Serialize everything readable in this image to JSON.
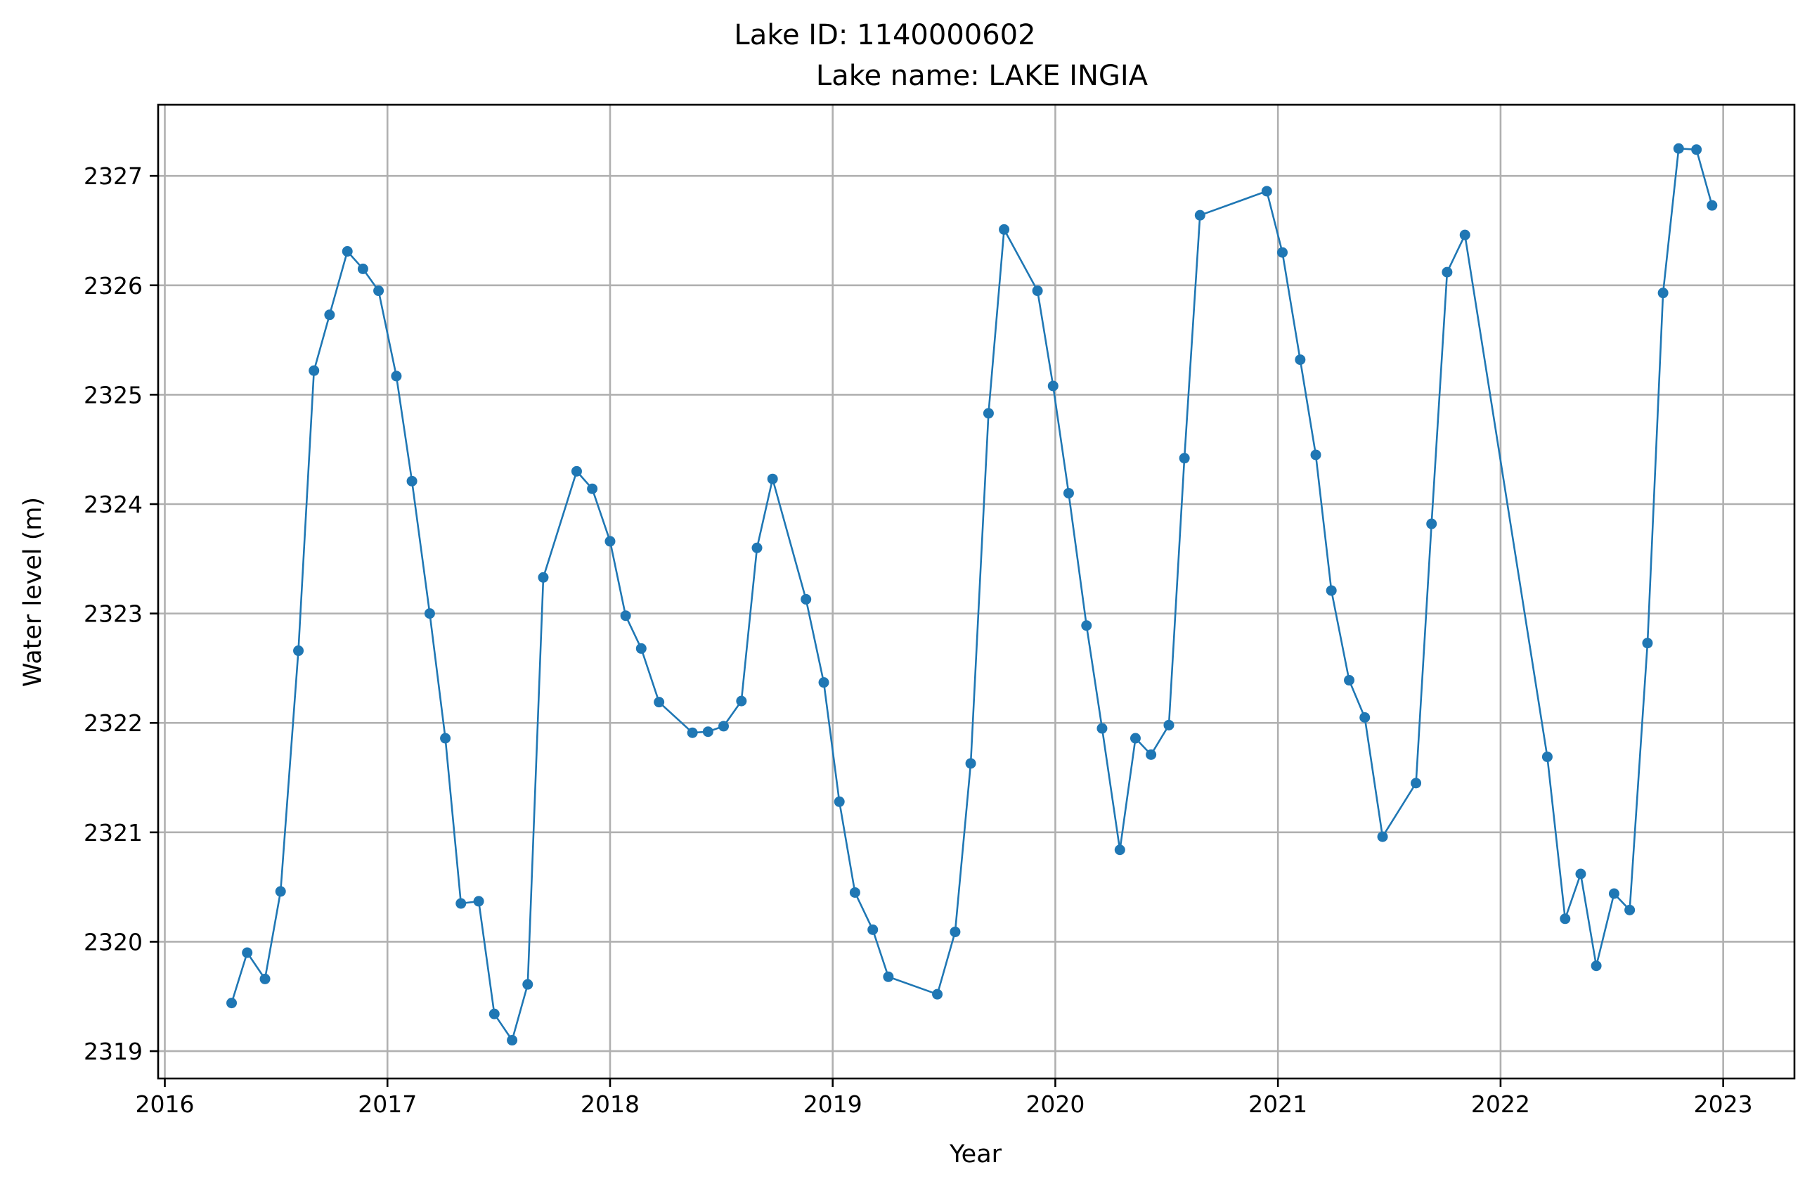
{
  "chart_data": {
    "type": "line",
    "title_line1": "Lake ID: 1140000602",
    "title_line2": "Lake name: LAKE INGIA",
    "xlabel": "Year",
    "ylabel": "Water level (m)",
    "grid": true,
    "color": "#1f77b4",
    "xlim": [
      2015.97,
      2023.32
    ],
    "ylim": [
      2318.75,
      2327.65
    ],
    "x_ticks": [
      2016,
      2017,
      2018,
      2019,
      2020,
      2021,
      2022,
      2023
    ],
    "x_tick_labels": [
      "2016",
      "2017",
      "2018",
      "2019",
      "2020",
      "2021",
      "2022",
      "2023"
    ],
    "y_ticks": [
      2319,
      2320,
      2321,
      2322,
      2323,
      2324,
      2325,
      2326,
      2327
    ],
    "y_tick_labels": [
      "2319",
      "2320",
      "2321",
      "2322",
      "2323",
      "2324",
      "2325",
      "2326",
      "2327"
    ],
    "series": [
      {
        "x": [
          2016.3,
          2016.37,
          2016.45,
          2016.52,
          2016.6,
          2016.67,
          2016.74,
          2016.82,
          2016.89,
          2016.96,
          2017.04,
          2017.11,
          2017.19,
          2017.26,
          2017.33,
          2017.41,
          2017.48,
          2017.56,
          2017.63,
          2017.7,
          2017.85,
          2017.92,
          2018.0,
          2018.07,
          2018.14,
          2018.22,
          2018.37,
          2018.44,
          2018.51,
          2018.59,
          2018.66,
          2018.73,
          2018.88,
          2018.96,
          2019.03,
          2019.1,
          2019.18,
          2019.25,
          2019.47,
          2019.55,
          2019.62,
          2019.7,
          2019.77,
          2019.92,
          2019.99,
          2020.06,
          2020.14,
          2020.21,
          2020.29,
          2020.36,
          2020.43,
          2020.51,
          2020.58,
          2020.65,
          2020.95,
          2021.02,
          2021.1,
          2021.17,
          2021.24,
          2021.32,
          2021.39,
          2021.47,
          2021.62,
          2021.69,
          2021.76,
          2021.84,
          2022.21,
          2022.29,
          2022.36,
          2022.43,
          2022.51,
          2022.58,
          2022.66,
          2022.73,
          2022.8,
          2022.88,
          2022.95
        ],
        "y": [
          2319.44,
          2319.9,
          2319.66,
          2320.46,
          2322.66,
          2325.22,
          2325.73,
          2326.31,
          2326.15,
          2325.95,
          2325.17,
          2324.21,
          2323.0,
          2321.86,
          2320.35,
          2320.37,
          2319.34,
          2319.1,
          2319.61,
          2323.33,
          2324.3,
          2324.14,
          2323.66,
          2322.98,
          2322.68,
          2322.19,
          2321.91,
          2321.92,
          2321.97,
          2322.2,
          2323.6,
          2324.23,
          2323.13,
          2322.37,
          2321.28,
          2320.45,
          2320.11,
          2319.68,
          2319.52,
          2320.09,
          2321.63,
          2324.83,
          2326.51,
          2325.95,
          2325.08,
          2324.1,
          2322.89,
          2321.95,
          2320.84,
          2321.86,
          2321.71,
          2321.98,
          2324.42,
          2326.64,
          2326.86,
          2326.3,
          2325.32,
          2324.45,
          2323.21,
          2322.39,
          2322.05,
          2320.96,
          2321.45,
          2323.82,
          2326.12,
          2326.46,
          2321.69,
          2320.21,
          2320.62,
          2319.78,
          2320.44,
          2320.29,
          2322.73,
          2325.93,
          2327.25,
          2327.24,
          2326.73
        ]
      }
    ]
  }
}
